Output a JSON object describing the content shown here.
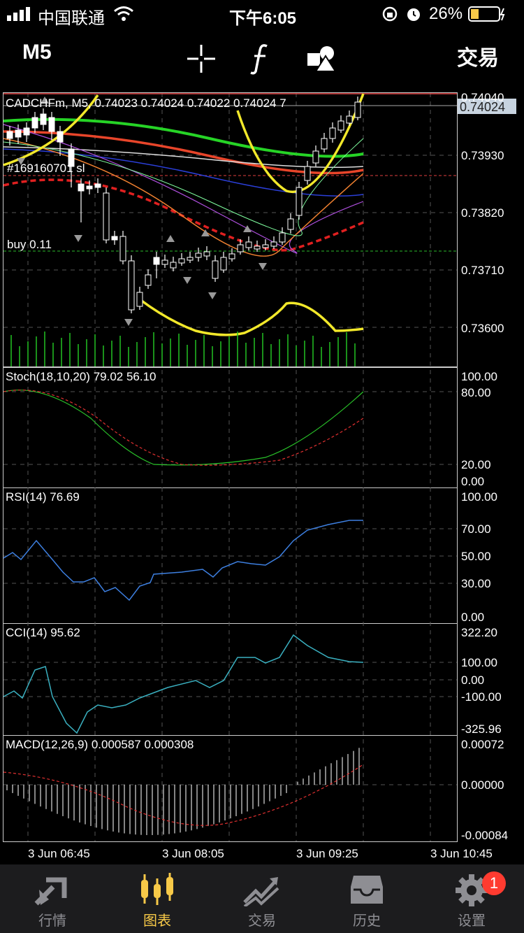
{
  "status_bar": {
    "carrier": "中国联通",
    "time": "下午6:05",
    "battery": "26%"
  },
  "toolbar": {
    "timeframe": "M5",
    "trade_label": "交易",
    "icons": [
      "crosshair-icon",
      "function-icon",
      "objects-icon"
    ]
  },
  "main_chart": {
    "title": "CADCHFm, M5, 0.74023 0.74024 0.74022 0.74024 7",
    "order_label": "#169160701 sl",
    "buy_label": "buy 0.11",
    "current_price": "0.74024",
    "price_ticks": [
      "0.74040",
      "0.73930",
      "0.73820",
      "0.73710",
      "0.73600"
    ]
  },
  "stoch": {
    "title": "Stoch(18,10,20) 79.02 56.10",
    "ticks": [
      "100.00",
      "80.00",
      "20.00",
      "0.00"
    ]
  },
  "rsi": {
    "title": "RSI(14) 76.69",
    "ticks": [
      "100.00",
      "70.00",
      "50.00",
      "30.00",
      "0.00"
    ]
  },
  "cci": {
    "title": "CCI(14) 95.62",
    "ticks": [
      "322.20",
      "100.00",
      "0.00",
      "-100.00",
      "-325.96"
    ]
  },
  "macd": {
    "title": "MACD(12,26,9) 0.000587 0.000308",
    "ticks": [
      "0.00072",
      "0.00000",
      "-0.00084"
    ]
  },
  "time_axis": [
    "3 Jun 06:45",
    "3 Jun 08:05",
    "3 Jun 09:25",
    "3 Jun 10:45"
  ],
  "bottom_nav": [
    {
      "label": "行情",
      "icon": "quotes-icon"
    },
    {
      "label": "图表",
      "icon": "chart-icon"
    },
    {
      "label": "交易",
      "icon": "trade-icon"
    },
    {
      "label": "历史",
      "icon": "history-icon"
    },
    {
      "label": "设置",
      "icon": "settings-icon"
    }
  ],
  "active_tab": "图表",
  "settings_badge": "1",
  "colors": {
    "active": "#f7c948",
    "inactive": "#8e8e93",
    "bull": "#ffffff",
    "volume": "#22c322"
  }
}
